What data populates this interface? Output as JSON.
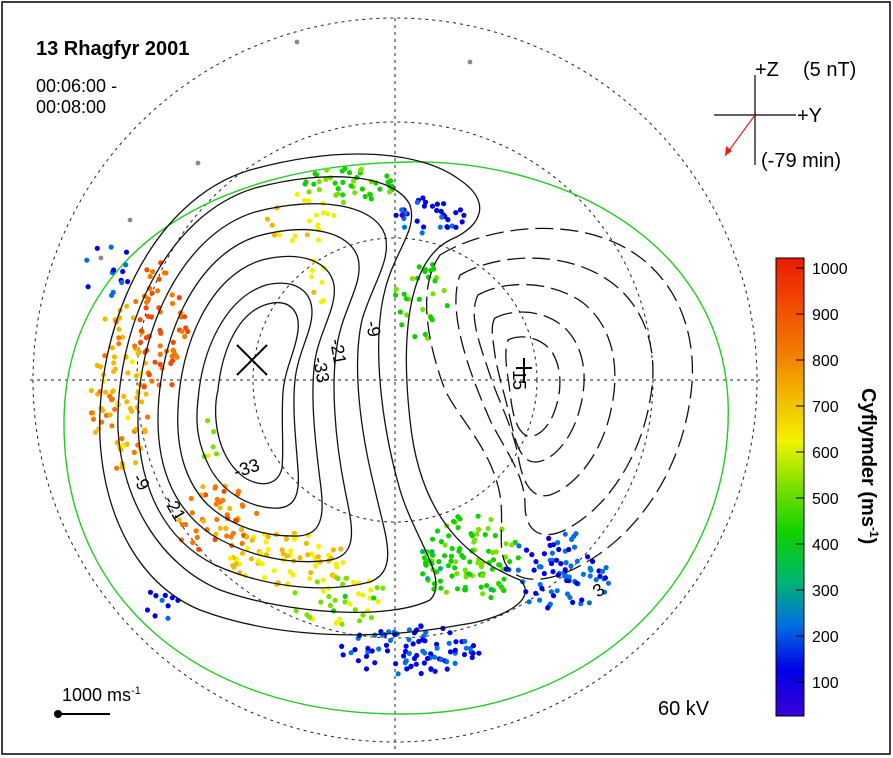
{
  "chart_data": {
    "type": "scatter",
    "title": "13 Rhagfyr 2001",
    "time_range": "00:06:00 -\n00:08:00",
    "potential_label": "60 kV",
    "vector_scale_label": "1000 ms",
    "vector_scale_sup": "-1",
    "imf": {
      "z_label": "+Z",
      "y_label": "+Y",
      "magnitude_label": "(5 nT)",
      "delay_label": "(-79 min)",
      "arrow_color": "#e02020"
    },
    "contour_labels": [
      "-21",
      "-9",
      "-33",
      "-33",
      "-9",
      "-21",
      "15",
      "3"
    ],
    "colorbar": {
      "title": "Cyflymder (ms",
      "title_sup": "-1",
      "title_end": ")",
      "min": 0,
      "max": 1000,
      "ticks": [
        "1000",
        "900",
        "800",
        "700",
        "600",
        "500",
        "400",
        "300",
        "200",
        "100"
      ],
      "stops": [
        "#3a00d8",
        "#0000e6",
        "#0070e0",
        "#00b86a",
        "#10d000",
        "#7ae000",
        "#f2f200",
        "#f2b800",
        "#f27800",
        "#f24a00",
        "#e81a00"
      ]
    },
    "colors": {
      "boundary": "#22cc22",
      "grid": "#222222",
      "contour": "#111111"
    }
  }
}
